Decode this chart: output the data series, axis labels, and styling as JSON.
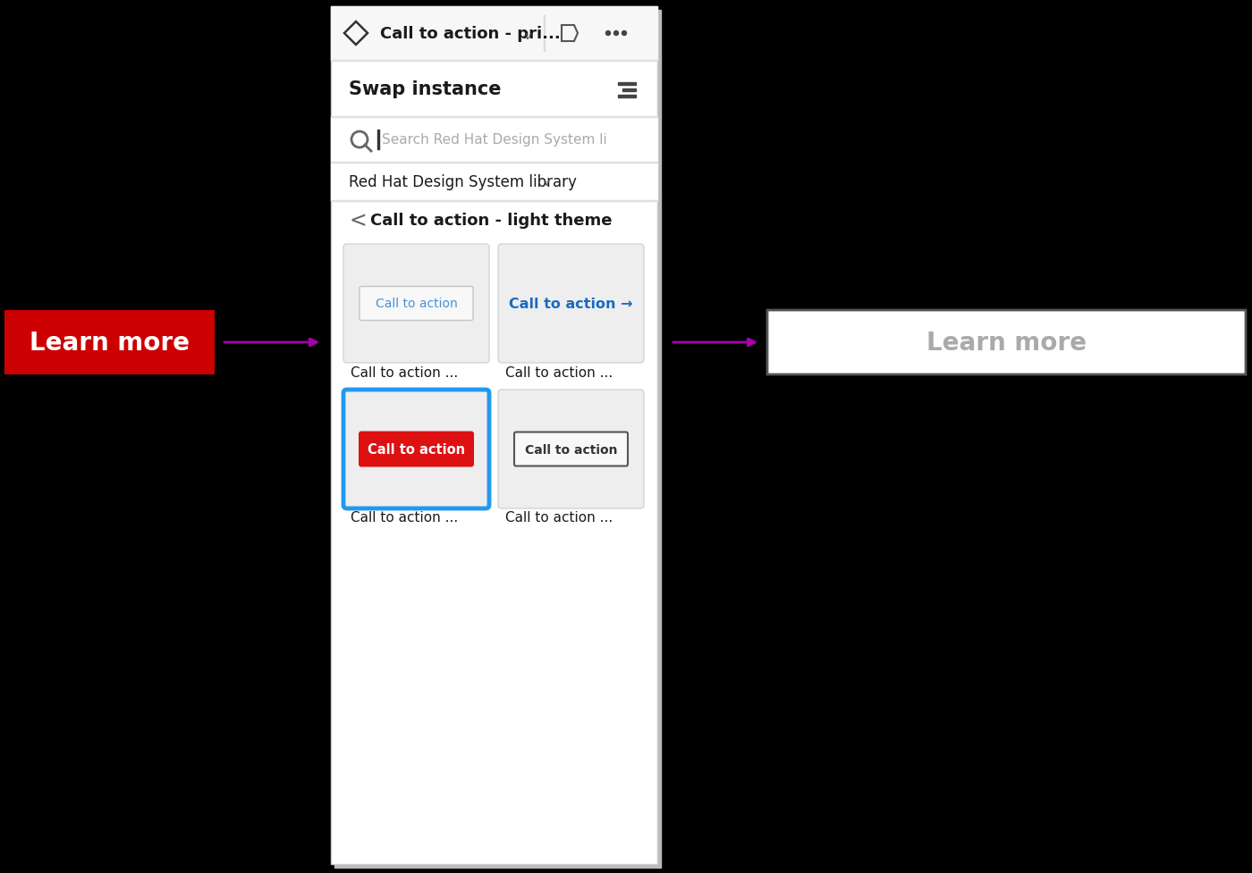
{
  "bg_color": "#000000",
  "panel_bg": "#ffffff",
  "panel_shadow_color": "#cccccc",
  "topbar_bg": "#f7f7f7",
  "topbar_text": "Call to action - pri...",
  "swap_title": "Swap instance",
  "search_placeholder": "Search Red Hat Design System li",
  "library_text": "Red Hat Design System library",
  "nav_text": "Call to action - light theme",
  "arrow_color": "#aa00aa",
  "left_btn_text": "Learn more",
  "left_btn_bg": "#cc0000",
  "left_btn_text_color": "#ffffff",
  "right_btn_text": "Learn more",
  "right_btn_bg": "#ffffff",
  "right_btn_border": "#555555",
  "right_btn_text_color": "#aaaaaa",
  "grid_labels": [
    "Call to action ...",
    "Call to action ...",
    "Call to action ...",
    "Call to action ..."
  ],
  "card1_btn_text": "Call to action",
  "card1_btn_color": "#4a90d9",
  "card2_btn_text": "Call to action →",
  "card2_btn_color": "#1a6bbf",
  "card3_btn_text": "Call to action",
  "card3_btn_bg": "#dd1111",
  "card3_btn_text_color": "#ffffff",
  "card3_border_color": "#2299ee",
  "card4_btn_text": "Call to action",
  "card4_btn_border": "#444444",
  "divider_color": "#e0e0e0",
  "text_dark": "#1a1a1a",
  "text_gray": "#666666",
  "card_bg": "#eeeeee"
}
